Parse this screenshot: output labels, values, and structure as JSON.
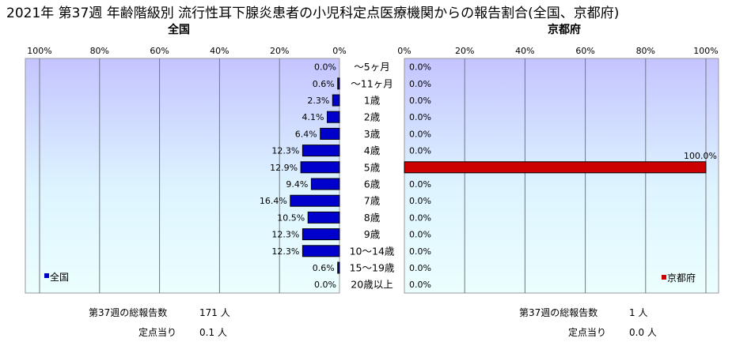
{
  "chart_data": {
    "type": "bar",
    "title": "2021年 第37週 年齢階級別 流行性耳下腺炎患者の小児科定点医療機関からの報告割合(全国、京都府)",
    "categories": [
      "～5ヶ月",
      "～11ヶ月",
      "1歳",
      "2歳",
      "3歳",
      "4歳",
      "5歳",
      "6歳",
      "7歳",
      "8歳",
      "9歳",
      "10～14歳",
      "15～19歳",
      "20歳以上"
    ],
    "xlim": [
      0,
      100
    ],
    "tick_labels": [
      "0%",
      "20%",
      "40%",
      "60%",
      "80%",
      "100%"
    ],
    "grid": true,
    "series": [
      {
        "name": "全国",
        "panel_title": "全国",
        "color": "#0000cc",
        "values": [
          0.0,
          0.6,
          2.3,
          4.1,
          6.4,
          12.3,
          12.9,
          9.4,
          16.4,
          10.5,
          12.3,
          12.3,
          0.6,
          0.0
        ],
        "labels": [
          "0.0%",
          "0.6%",
          "2.3%",
          "4.1%",
          "6.4%",
          "12.3%",
          "12.9%",
          "9.4%",
          "16.4%",
          "10.5%",
          "12.3%",
          "12.3%",
          "0.6%",
          "0.0%"
        ],
        "legend_position": "bottom-left"
      },
      {
        "name": "京都府",
        "panel_title": "京都府",
        "color": "#cc0000",
        "values": [
          0.0,
          0.0,
          0.0,
          0.0,
          0.0,
          0.0,
          100.0,
          0.0,
          0.0,
          0.0,
          0.0,
          0.0,
          0.0,
          0.0
        ],
        "labels": [
          "0.0%",
          "0.0%",
          "0.0%",
          "0.0%",
          "0.0%",
          "0.0%",
          "100.0%",
          "0.0%",
          "0.0%",
          "0.0%",
          "0.0%",
          "0.0%",
          "0.0%",
          "0.0%"
        ],
        "legend_position": "bottom-right"
      }
    ]
  },
  "summary": {
    "national": {
      "total_label": "第37週の総報告数",
      "total_value": "171 人",
      "per_label": "定点当り",
      "per_value": "0.1 人"
    },
    "kyoto": {
      "total_label": "第37週の総報告数",
      "total_value": "1 人",
      "per_label": "定点当り",
      "per_value": "0.0 人"
    }
  }
}
